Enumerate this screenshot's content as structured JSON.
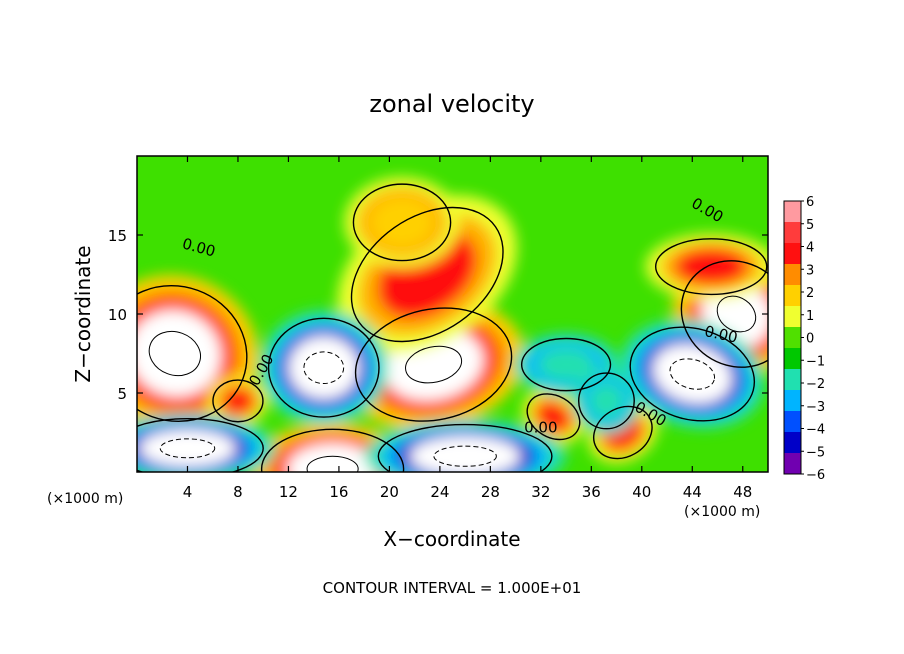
{
  "chart_data": {
    "type": "heatmap",
    "title": "zonal velocity",
    "xlabel": "X−coordinate",
    "ylabel": "Z−coordinate",
    "x_units": "(×1000 m)",
    "y_units": "(×1000 m)",
    "xlim": [
      0,
      50
    ],
    "ylim": [
      0,
      20
    ],
    "x_ticks": [
      4,
      8,
      12,
      16,
      20,
      24,
      28,
      32,
      36,
      40,
      44,
      48
    ],
    "y_ticks": [
      5,
      10,
      15
    ],
    "colorbar": {
      "min": -6,
      "max": 6,
      "labels": [
        "6",
        "5",
        "4",
        "3",
        "2",
        "1",
        "0",
        "−1",
        "−2",
        "−3",
        "−4",
        "−5",
        "−6"
      ],
      "colors": [
        "#ff9aa0",
        "#ff3c3c",
        "#ff1010",
        "#ff8c00",
        "#ffd000",
        "#f0ff30",
        "#50e000",
        "#00c800",
        "#20e0b0",
        "#00b4ff",
        "#0050ff",
        "#0000c8",
        "#7000b0"
      ]
    },
    "contour_interval_label": "CONTOUR INTERVAL = 1.000E+01",
    "contour_labels": [
      {
        "text": "0.00",
        "x": 4.8,
        "y": 13.9,
        "angle": 15
      },
      {
        "text": "0.00",
        "x": 45.0,
        "y": 16.3,
        "angle": 30
      },
      {
        "text": "0.00",
        "x": 10.2,
        "y": 6.3,
        "angle": -60
      },
      {
        "text": "0.00",
        "x": 46.2,
        "y": 8.4,
        "angle": 12
      },
      {
        "text": "0.00",
        "x": 40.5,
        "y": 3.4,
        "angle": 30
      },
      {
        "text": "0.00",
        "x": 32.0,
        "y": 2.5,
        "angle": 0
      }
    ],
    "features": [
      {
        "kind": "high",
        "x": 3.0,
        "y": 7.5,
        "rx": 4.6,
        "ry": 3.4,
        "rot": -20,
        "value": 6
      },
      {
        "kind": "high",
        "x": 23.5,
        "y": 6.8,
        "rx": 5.0,
        "ry": 2.8,
        "rot": 12,
        "value": 6
      },
      {
        "kind": "high",
        "x": 47.5,
        "y": 10.0,
        "rx": 3.6,
        "ry": 2.6,
        "rot": -35,
        "value": 5
      },
      {
        "kind": "high",
        "x": 23.0,
        "y": 12.5,
        "rx": 6.0,
        "ry": 3.3,
        "rot": 35,
        "value": 4
      },
      {
        "kind": "high",
        "x": 8.0,
        "y": 4.5,
        "rx": 1.8,
        "ry": 1.2,
        "rot": 0,
        "value": 4
      },
      {
        "kind": "high",
        "x": 33.0,
        "y": 3.5,
        "rx": 2.0,
        "ry": 1.2,
        "rot": -30,
        "value": 4
      },
      {
        "kind": "high",
        "x": 15.5,
        "y": 0.2,
        "rx": 4.5,
        "ry": 2.0,
        "rot": 0,
        "value": 6
      },
      {
        "kind": "high",
        "x": 38.5,
        "y": 2.5,
        "rx": 2.2,
        "ry": 1.4,
        "rot": 30,
        "value": 4
      },
      {
        "kind": "high",
        "x": 45.5,
        "y": 13.0,
        "rx": 4.0,
        "ry": 1.6,
        "rot": 0,
        "value": 4
      },
      {
        "kind": "high",
        "x": 21.0,
        "y": 15.8,
        "rx": 3.5,
        "ry": 2.2,
        "rot": 0,
        "value": 2
      },
      {
        "kind": "low",
        "x": 14.8,
        "y": 6.6,
        "rx": 3.5,
        "ry": 2.5,
        "rot": 0,
        "value": -6
      },
      {
        "kind": "low",
        "x": 44.0,
        "y": 6.2,
        "rx": 4.0,
        "ry": 2.3,
        "rot": -15,
        "value": -6
      },
      {
        "kind": "low",
        "x": 4.0,
        "y": 1.5,
        "rx": 4.8,
        "ry": 1.5,
        "rot": 0,
        "value": -6
      },
      {
        "kind": "low",
        "x": 26.0,
        "y": 1.0,
        "rx": 5.5,
        "ry": 1.6,
        "rot": 0,
        "value": -6
      },
      {
        "kind": "low",
        "x": 34.0,
        "y": 6.8,
        "rx": 3.2,
        "ry": 1.5,
        "rot": 0,
        "value": -2
      },
      {
        "kind": "low",
        "x": 37.2,
        "y": 4.5,
        "rx": 2.0,
        "ry": 1.6,
        "rot": 0,
        "value": -2
      }
    ]
  }
}
